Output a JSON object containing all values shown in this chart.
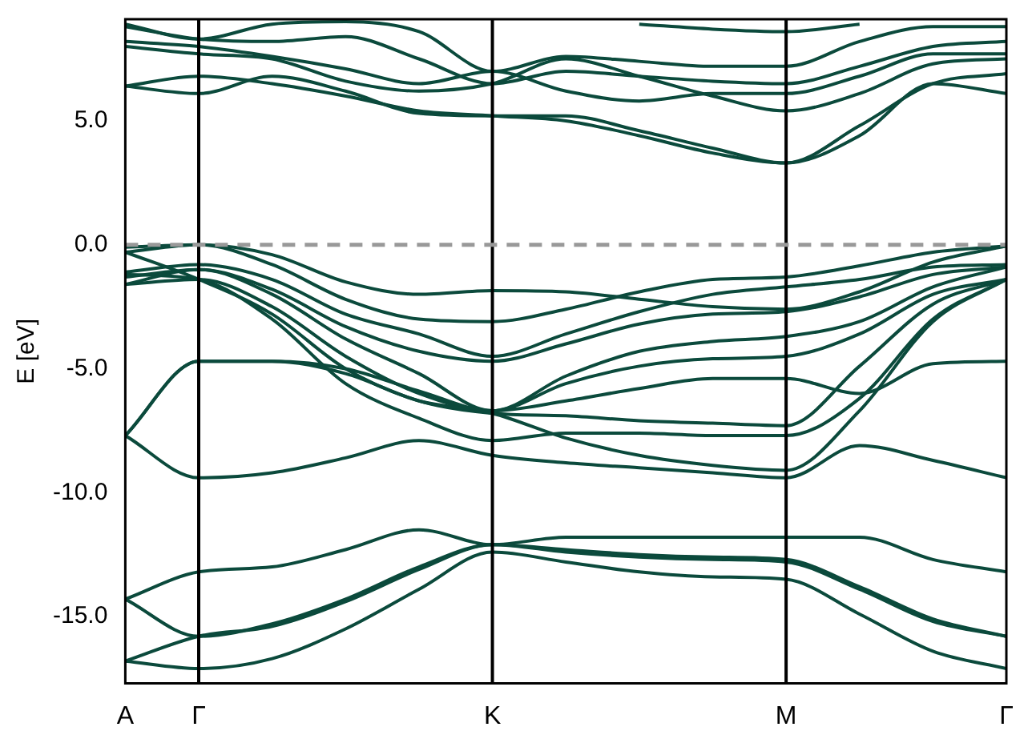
{
  "chart_data": {
    "type": "line",
    "ylabel": "E [eV]",
    "categories": [
      "A",
      "Γ",
      null,
      null,
      null,
      "K",
      null,
      null,
      null,
      "M",
      null,
      null,
      "Γ"
    ],
    "ylim": [
      -17.7,
      9.1
    ],
    "yticks": [
      {
        "value": -15,
        "label": "-15.0"
      },
      {
        "value": -10,
        "label": "-10.0"
      },
      {
        "value": -5,
        "label": "-5.0"
      },
      {
        "value": 0,
        "label": "0.0"
      },
      {
        "value": 5,
        "label": "5.0"
      }
    ],
    "grid": false,
    "legend": false,
    "marker": "none",
    "line_style": "solid",
    "ref_lines": [
      {
        "axis": "x",
        "value": "Γ",
        "color": "#000000",
        "line_style": "solid"
      },
      {
        "axis": "x",
        "value": "K",
        "color": "#000000",
        "line_style": "solid"
      },
      {
        "axis": "x",
        "value": "M",
        "color": "#000000",
        "line_style": "solid"
      },
      {
        "axis": "y",
        "value": 0,
        "color": "#999999",
        "line_style": "dashed"
      }
    ],
    "series": [
      {
        "color": "#0b4a3c",
        "values": [
          -16.8,
          -17.1,
          -16.7,
          -15.5,
          -13.9,
          -12.4,
          -12.8,
          -13.2,
          -13.4,
          -13.5,
          -14.9,
          -16.4,
          -17.1
        ]
      },
      {
        "color": "#0b4a3c",
        "values": [
          -16.8,
          -15.8,
          -15.4,
          -14.4,
          -13.1,
          -12.1,
          -12.4,
          -12.6,
          -12.7,
          -12.8,
          -13.9,
          -15.2,
          -15.8
        ]
      },
      {
        "color": "#0b4a3c",
        "values": [
          -14.3,
          -15.8,
          -15.3,
          -14.3,
          -13.0,
          -12.1,
          -12.3,
          -12.5,
          -12.6,
          -12.7,
          -13.8,
          -15.1,
          -15.8
        ]
      },
      {
        "color": "#0b4a3c",
        "values": [
          -14.3,
          -13.2,
          -13.0,
          -12.3,
          -11.5,
          -12.1,
          -11.8,
          -11.8,
          -11.8,
          -11.8,
          -11.8,
          -12.7,
          -13.2
        ]
      },
      {
        "color": "#0b4a3c",
        "values": [
          -7.7,
          -9.4,
          -9.2,
          -8.6,
          -7.9,
          -8.5,
          -8.8,
          -9.0,
          -9.2,
          -9.4,
          -8.1,
          -8.7,
          -9.4
        ]
      },
      {
        "color": "#0b4a3c",
        "values": [
          -7.7,
          -4.7,
          -4.7,
          -5.0,
          -5.9,
          -6.7,
          -6.3,
          -5.8,
          -5.4,
          -5.4,
          -6.0,
          -4.8,
          -4.7
        ]
      },
      {
        "color": "#0b4a3c",
        "values": [
          -7.7,
          -4.7,
          -4.7,
          -5.2,
          -6.3,
          -6.8,
          -7.8,
          -8.5,
          -8.9,
          -9.1,
          -6.7,
          -3.1,
          -1.4
        ]
      },
      {
        "color": "#0b4a3c",
        "values": [
          -0.1,
          0,
          -0.4,
          -1.5,
          -2.0,
          -1.85,
          -1.9,
          -2.2,
          -2.5,
          -2.6,
          -1.9,
          -0.7,
          -0.05
        ]
      },
      {
        "color": "#0b4a3c",
        "values": [
          -0.3,
          0,
          -0.8,
          -2.2,
          -3.0,
          -3.1,
          -2.6,
          -1.9,
          -1.4,
          -1.3,
          -0.85,
          -0.3,
          -0.05
        ]
      },
      {
        "color": "#0b4a3c",
        "values": [
          -1.1,
          -0.8,
          -1.4,
          -2.8,
          -3.6,
          -4.5,
          -3.6,
          -2.7,
          -2.0,
          -1.7,
          -1.4,
          -0.9,
          -0.8
        ]
      },
      {
        "color": "#0b4a3c",
        "values": [
          -1.3,
          -1.0,
          -1.8,
          -3.3,
          -4.3,
          -4.7,
          -4.0,
          -3.2,
          -2.8,
          -2.7,
          -2.1,
          -1.2,
          -0.9
        ]
      },
      {
        "color": "#0b4a3c",
        "values": [
          -1.6,
          -1.0,
          -2.0,
          -3.8,
          -5.2,
          -6.7,
          -5.3,
          -4.3,
          -3.9,
          -3.7,
          -3.1,
          -1.7,
          -0.9
        ]
      },
      {
        "color": "#0b4a3c",
        "values": [
          -1.6,
          -1.4,
          -2.5,
          -4.5,
          -6.0,
          -6.7,
          -5.6,
          -4.9,
          -4.6,
          -4.5,
          -3.6,
          -2.0,
          -1.4
        ]
      },
      {
        "color": "#0b4a3c",
        "values": [
          -0.3,
          -1.4,
          -2.8,
          -5.0,
          -6.3,
          -6.8,
          -6.9,
          -7.1,
          -7.2,
          -7.3,
          -4.9,
          -2.4,
          -1.4
        ]
      },
      {
        "color": "#0b4a3c",
        "values": [
          -1.2,
          -1.4,
          -3.0,
          -5.6,
          -7.0,
          -7.9,
          -7.6,
          -7.6,
          -7.7,
          -7.7,
          -6.2,
          -3.0,
          -1.4
        ]
      },
      {
        "color": "#0b4a3c",
        "values": [
          6.4,
          6.1,
          6.8,
          6.2,
          5.3,
          5.2,
          5.2,
          4.6,
          3.9,
          3.3,
          4.4,
          6.5,
          6.1
        ]
      },
      {
        "color": "#0b4a3c",
        "values": [
          6.4,
          6.8,
          6.5,
          6.0,
          5.4,
          5.2,
          5.0,
          4.4,
          3.7,
          3.3,
          4.8,
          6.5,
          6.9
        ]
      },
      {
        "color": "#0b4a3c",
        "values": [
          8.0,
          7.7,
          7.5,
          6.6,
          6.2,
          6.5,
          7.5,
          6.8,
          6.0,
          5.4,
          6.1,
          7.3,
          7.5
        ]
      },
      {
        "color": "#0b4a3c",
        "values": [
          8.2,
          8.0,
          7.6,
          7.1,
          6.5,
          7.0,
          6.2,
          5.8,
          6.1,
          6.1,
          6.8,
          7.7,
          7.7
        ]
      },
      {
        "color": "#0b4a3c",
        "values": [
          8.8,
          8.3,
          8.2,
          8.4,
          7.5,
          6.5,
          7.0,
          6.8,
          6.6,
          6.5,
          7.2,
          8.0,
          8.2
        ]
      },
      {
        "color": "#0b4a3c",
        "values": [
          8.9,
          8.3,
          8.9,
          9.0,
          8.6,
          7.0,
          7.6,
          7.4,
          7.2,
          7.2,
          8.2,
          8.8,
          8.8
        ]
      },
      {
        "color": "#0b4a3c",
        "values": [
          null,
          null,
          null,
          null,
          null,
          null,
          null,
          8.9,
          8.7,
          8.6,
          8.9,
          null,
          null
        ]
      }
    ]
  }
}
